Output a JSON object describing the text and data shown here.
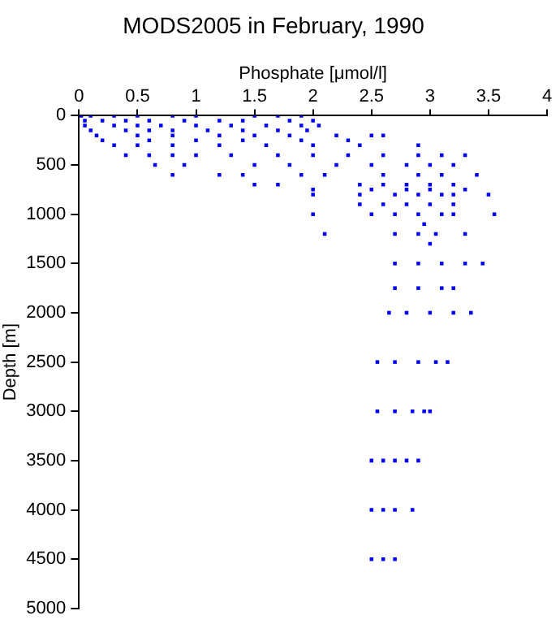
{
  "chart_data": {
    "type": "scatter",
    "title": "MODS2005 in February, 1990",
    "xlabel": "Phosphate [μmol/l]",
    "ylabel": "Depth [m]",
    "xlim": [
      0,
      4
    ],
    "xticks": [
      0,
      0.5,
      1,
      1.5,
      2,
      2.5,
      3,
      3.5,
      4
    ],
    "ylim": [
      5000,
      0
    ],
    "yticks": [
      0,
      500,
      1000,
      1500,
      2000,
      2500,
      3000,
      3500,
      4000,
      4500,
      5000
    ],
    "grid": false,
    "legend": false,
    "marker": "square",
    "series": [
      {
        "color": "#0000ff",
        "x": [
          0.02,
          0.1,
          0.3,
          0.5,
          0.8,
          1.0,
          1.5,
          1.7,
          1.9,
          0.05,
          0.2,
          0.4,
          0.6,
          0.9,
          1.2,
          1.4,
          1.8,
          2.0,
          0.05,
          0.3,
          0.5,
          0.7,
          1.0,
          1.3,
          1.6,
          1.9,
          2.05,
          0.1,
          0.4,
          0.6,
          0.8,
          1.1,
          1.4,
          1.7,
          1.95,
          0.15,
          0.5,
          0.8,
          1.2,
          1.5,
          1.8,
          2.2,
          2.5,
          2.6,
          0.2,
          0.6,
          1.0,
          1.4,
          1.9,
          2.3,
          0.3,
          0.5,
          0.8,
          1.2,
          1.6,
          2.0,
          2.4,
          2.9,
          0.4,
          0.6,
          0.8,
          1.0,
          1.3,
          1.7,
          2.0,
          2.3,
          2.6,
          2.9,
          3.1,
          3.3,
          0.65,
          0.9,
          1.5,
          1.8,
          2.2,
          2.5,
          2.8,
          3.0,
          3.2,
          0.8,
          1.2,
          1.4,
          1.9,
          2.1,
          2.6,
          2.9,
          3.1,
          3.4,
          1.5,
          1.7,
          2.4,
          2.6,
          2.8,
          3.0,
          3.2,
          2.0,
          2.5,
          2.8,
          3.0,
          3.3,
          2.0,
          2.4,
          2.7,
          2.9,
          3.1,
          3.2,
          3.5,
          2.4,
          2.6,
          2.8,
          3.0,
          3.2,
          2.0,
          2.5,
          2.7,
          2.9,
          3.1,
          3.2,
          3.55,
          2.95,
          2.1,
          2.7,
          2.9,
          3.05,
          3.3,
          3.0,
          2.7,
          2.9,
          3.1,
          3.3,
          3.45,
          2.7,
          2.9,
          3.1,
          3.2,
          2.65,
          2.8,
          3.0,
          3.2,
          3.35,
          2.55,
          2.7,
          2.9,
          3.05,
          3.15,
          2.55,
          2.7,
          2.85,
          2.95,
          3.0,
          2.5,
          2.6,
          2.7,
          2.8,
          2.9,
          2.5,
          2.6,
          2.7,
          2.85,
          2.5,
          2.6,
          2.7
        ],
        "values": [
          0,
          0,
          0,
          0,
          0,
          0,
          0,
          0,
          0,
          50,
          50,
          50,
          50,
          50,
          50,
          50,
          50,
          50,
          100,
          100,
          100,
          100,
          100,
          100,
          100,
          100,
          100,
          150,
          150,
          150,
          150,
          150,
          150,
          150,
          150,
          200,
          200,
          200,
          200,
          200,
          200,
          200,
          200,
          200,
          250,
          250,
          250,
          250,
          250,
          250,
          300,
          300,
          300,
          300,
          300,
          300,
          300,
          300,
          400,
          400,
          400,
          400,
          400,
          400,
          400,
          400,
          400,
          400,
          400,
          400,
          500,
          500,
          500,
          500,
          500,
          500,
          500,
          500,
          500,
          600,
          600,
          600,
          600,
          600,
          600,
          600,
          600,
          600,
          700,
          700,
          700,
          700,
          700,
          700,
          700,
          750,
          750,
          750,
          750,
          750,
          800,
          800,
          800,
          800,
          800,
          800,
          800,
          900,
          900,
          900,
          900,
          900,
          1000,
          1000,
          1000,
          1000,
          1000,
          1000,
          1000,
          1100,
          1200,
          1200,
          1200,
          1200,
          1200,
          1300,
          1500,
          1500,
          1500,
          1500,
          1500,
          1750,
          1750,
          1750,
          1750,
          2000,
          2000,
          2000,
          2000,
          2000,
          2500,
          2500,
          2500,
          2500,
          2500,
          3000,
          3000,
          3000,
          3000,
          3000,
          3500,
          3500,
          3500,
          3500,
          3500,
          4000,
          4000,
          4000,
          4000,
          4500,
          4500,
          4500
        ]
      }
    ]
  }
}
